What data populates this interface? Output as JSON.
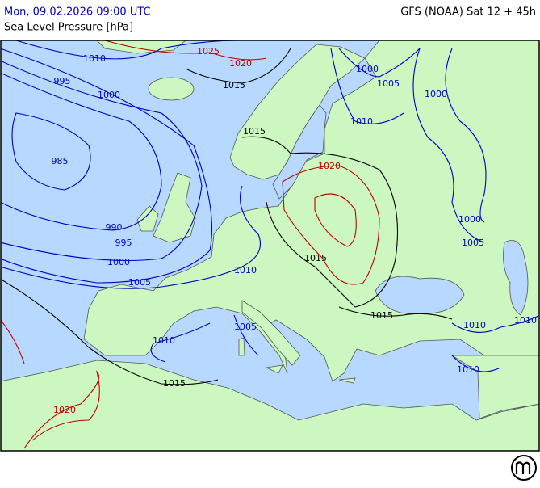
{
  "header": {
    "datetime": "Mon, 09.02.2026 09:00 UTC",
    "model": "GFS (NOAA) Sat 12 + 45h",
    "parameter": "Sea Level Pressure [hPa]"
  },
  "isobar_labels": [
    1025,
    1020,
    1010,
    1015,
    995,
    1000,
    1000,
    1005,
    1000,
    1015,
    1010,
    985,
    1020,
    990,
    995,
    1000,
    1005,
    1000,
    1005,
    1010,
    1015,
    1015,
    1005,
    1010,
    1010,
    1010,
    1010,
    1015,
    1020
  ]
}
